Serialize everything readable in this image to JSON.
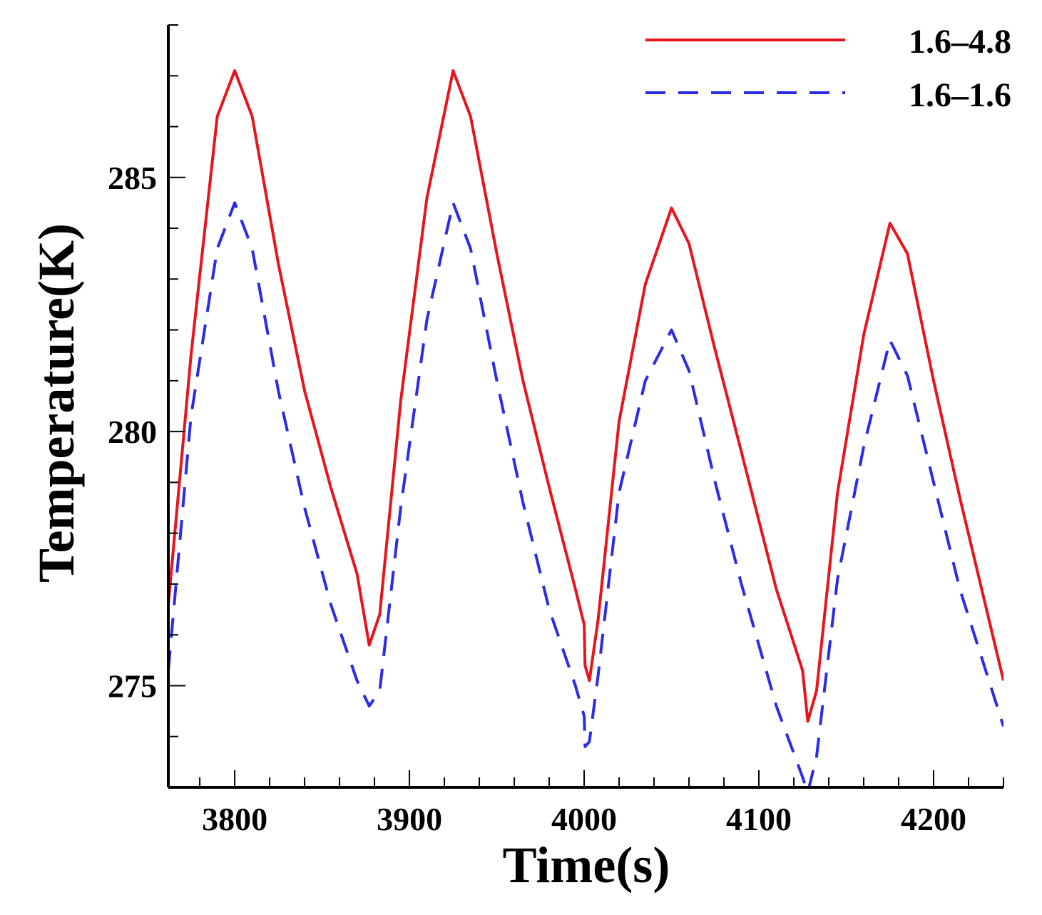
{
  "chart_data": {
    "type": "line",
    "title": "",
    "xlabel": "Time(s)",
    "ylabel": "Temperature(K)",
    "xlim": [
      3762,
      4240
    ],
    "ylim": [
      273.0,
      288.0
    ],
    "xticks": [
      3800,
      3900,
      4000,
      4100,
      4200
    ],
    "xtick_labels": [
      "3800",
      "3900",
      "4000",
      "4100",
      "4200"
    ],
    "yticks": [
      275,
      280,
      285
    ],
    "ytick_labels": [
      "275",
      "280",
      "285"
    ],
    "legend_position": "top-right",
    "grid": false,
    "series": [
      {
        "name": "1.6–4.8",
        "color": "#e8141b",
        "style": "solid",
        "x": [
          3762,
          3775,
          3790,
          3800,
          3810,
          3825,
          3840,
          3855,
          3870,
          3877,
          3883,
          3895,
          3910,
          3925,
          3935,
          3950,
          3965,
          3980,
          3995,
          4000,
          4000.5,
          4003,
          4008,
          4020,
          4035,
          4050,
          4060,
          4075,
          4090,
          4110,
          4125,
          4128,
          4133,
          4145,
          4160,
          4175,
          4185,
          4200,
          4215,
          4240
        ],
        "y": [
          276.6,
          281.5,
          286.2,
          287.1,
          286.2,
          283.3,
          280.8,
          278.9,
          277.2,
          275.8,
          276.4,
          280.6,
          284.6,
          287.1,
          286.2,
          283.5,
          281.0,
          278.9,
          276.9,
          276.2,
          275.4,
          275.1,
          276.3,
          280.2,
          282.9,
          284.4,
          283.7,
          281.6,
          279.6,
          276.9,
          275.3,
          274.3,
          274.9,
          278.8,
          281.9,
          284.1,
          283.5,
          281.0,
          278.7,
          275.1
        ]
      },
      {
        "name": "1.6–1.6",
        "color": "#2b2be8",
        "style": "dashed",
        "x": [
          3762,
          3775,
          3790,
          3800,
          3810,
          3825,
          3840,
          3855,
          3870,
          3877,
          3883,
          3895,
          3910,
          3925,
          3935,
          3950,
          3965,
          3980,
          3995,
          4000,
          4000.5,
          4003,
          4008,
          4020,
          4035,
          4050,
          4060,
          4075,
          4090,
          4110,
          4125,
          4128,
          4133,
          4145,
          4160,
          4175,
          4185,
          4200,
          4215,
          4240
        ],
        "y": [
          275.3,
          280.3,
          283.6,
          284.5,
          283.6,
          280.8,
          278.5,
          276.6,
          275.1,
          274.6,
          274.9,
          278.5,
          282.2,
          284.5,
          283.6,
          281.0,
          278.6,
          276.5,
          275.0,
          274.4,
          273.8,
          273.9,
          275.2,
          278.8,
          281.0,
          282.0,
          281.2,
          279.0,
          277.0,
          274.6,
          273.2,
          272.9,
          273.6,
          277.1,
          279.7,
          281.8,
          281.1,
          279.0,
          276.9,
          274.2
        ]
      }
    ]
  }
}
